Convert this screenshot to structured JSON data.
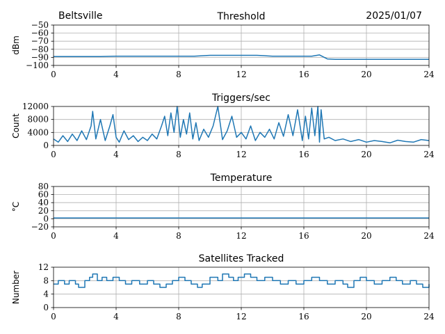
{
  "header": {
    "location": "Beltsville",
    "date": "2025/01/07"
  },
  "chart_data": [
    {
      "type": "line",
      "title": "Threshold",
      "ylabel": "dBm",
      "xlim": [
        0,
        24
      ],
      "xticks": [
        0,
        4,
        8,
        12,
        16,
        20,
        24
      ],
      "ylim": [
        -100,
        -50
      ],
      "yticks": [
        -100,
        -90,
        -80,
        -70,
        -60,
        -50
      ],
      "grid": true,
      "series": [
        {
          "color": "#1f77b4",
          "x": [
            0,
            1,
            2,
            3,
            4,
            5,
            6,
            7,
            8,
            9,
            10,
            11,
            12,
            13,
            14,
            15,
            16,
            16.5,
            17,
            17.5,
            18,
            19,
            20,
            20.5,
            21,
            22,
            23,
            24
          ],
          "y": [
            -89,
            -89,
            -89,
            -89,
            -88.5,
            -88.5,
            -88.5,
            -88.5,
            -88.5,
            -88.5,
            -87.5,
            -87.5,
            -87.5,
            -87.5,
            -88.5,
            -88.5,
            -88.5,
            -88.5,
            -87,
            -92,
            -92.5,
            -92.5,
            -92.5,
            -92.5,
            -92.5,
            -92.5,
            -92.5,
            -92.5
          ]
        }
      ]
    },
    {
      "type": "line",
      "title": "Triggers/sec",
      "ylabel": "Count",
      "xlim": [
        0,
        24
      ],
      "xticks": [
        0,
        4,
        8,
        12,
        16,
        20,
        24
      ],
      "ylim": [
        0,
        12000
      ],
      "yticks": [
        0,
        4000,
        8000,
        12000
      ],
      "grid": true,
      "series": [
        {
          "color": "#1f77b4",
          "x": [
            0,
            0.3,
            0.6,
            0.9,
            1.2,
            1.5,
            1.8,
            2.1,
            2.4,
            2.5,
            2.7,
            3.0,
            3.3,
            3.6,
            3.8,
            4.0,
            4.2,
            4.5,
            4.8,
            5.1,
            5.4,
            5.7,
            6.0,
            6.3,
            6.6,
            6.9,
            7.1,
            7.3,
            7.5,
            7.7,
            7.9,
            8.1,
            8.3,
            8.5,
            8.7,
            8.9,
            9.1,
            9.3,
            9.6,
            9.9,
            10.2,
            10.5,
            10.8,
            11.1,
            11.4,
            11.7,
            12.0,
            12.3,
            12.6,
            12.9,
            13.2,
            13.5,
            13.8,
            14.1,
            14.4,
            14.7,
            15.0,
            15.3,
            15.6,
            15.9,
            16.1,
            16.3,
            16.5,
            16.7,
            16.9,
            17.0,
            17.1,
            17.3,
            17.6,
            18.0,
            18.5,
            19.0,
            19.5,
            20.0,
            20.5,
            21.0,
            21.5,
            22.0,
            22.5,
            23.0,
            23.5,
            24.0
          ],
          "y": [
            2000,
            1000,
            3000,
            1200,
            3500,
            1500,
            4500,
            1800,
            6000,
            10500,
            2000,
            8000,
            1500,
            6000,
            9500,
            2500,
            1000,
            4500,
            1800,
            3000,
            1200,
            2500,
            1500,
            3500,
            2000,
            6000,
            9000,
            3000,
            10000,
            4000,
            12000,
            2500,
            8000,
            3500,
            10000,
            2000,
            7000,
            1500,
            5000,
            2500,
            6000,
            12000,
            1800,
            4500,
            9000,
            2500,
            4000,
            2000,
            6000,
            1500,
            4000,
            2500,
            5000,
            2000,
            7000,
            2800,
            9500,
            3000,
            11000,
            1500,
            9000,
            2000,
            11500,
            3000,
            12000,
            1000,
            11000,
            2000,
            2500,
            1500,
            2000,
            1200,
            1800,
            1000,
            1500,
            1200,
            800,
            1600,
            1200,
            1000,
            1800,
            1500
          ]
        }
      ]
    },
    {
      "type": "line",
      "title": "Temperature",
      "ylabel": "°C",
      "xlim": [
        0,
        24
      ],
      "xticks": [
        0,
        4,
        8,
        12,
        16,
        20,
        24
      ],
      "ylim": [
        -20,
        80
      ],
      "yticks": [
        -20,
        0,
        20,
        40,
        60,
        80
      ],
      "grid": true,
      "series": [
        {
          "color": "#1f77b4",
          "x": [
            0,
            24
          ],
          "y": [
            2,
            2
          ]
        }
      ]
    },
    {
      "type": "line",
      "title": "Satellites Tracked",
      "ylabel": "Number",
      "xlim": [
        0,
        24
      ],
      "xticks": [
        0,
        4,
        8,
        12,
        16,
        20,
        24
      ],
      "ylim": [
        0,
        12
      ],
      "yticks": [
        0,
        4,
        8,
        12
      ],
      "grid": true,
      "series": [
        {
          "color": "#1f77b4",
          "step": true,
          "x": [
            0,
            0.3,
            0.7,
            1.0,
            1.4,
            1.6,
            2.0,
            2.3,
            2.5,
            2.8,
            3.1,
            3.4,
            3.8,
            4.2,
            4.6,
            5.0,
            5.5,
            6.0,
            6.4,
            6.8,
            7.2,
            7.6,
            8.0,
            8.4,
            8.8,
            9.2,
            9.5,
            10.0,
            10.5,
            10.8,
            11.2,
            11.5,
            11.8,
            12.2,
            12.6,
            13.0,
            13.5,
            14.0,
            14.5,
            15.0,
            15.5,
            16.0,
            16.5,
            17.0,
            17.5,
            18.0,
            18.5,
            18.8,
            19.2,
            19.6,
            20.0,
            20.5,
            21.0,
            21.5,
            21.9,
            22.3,
            22.8,
            23.2,
            23.6,
            24.0
          ],
          "y": [
            7,
            8,
            7,
            8,
            7,
            6,
            8,
            9,
            10,
            8,
            9,
            8,
            9,
            8,
            7,
            8,
            7,
            8,
            7,
            6,
            7,
            8,
            9,
            8,
            7,
            6,
            7,
            9,
            8,
            10,
            9,
            8,
            9,
            10,
            9,
            8,
            9,
            8,
            7,
            8,
            7,
            8,
            9,
            8,
            7,
            8,
            7,
            6,
            8,
            9,
            8,
            7,
            8,
            9,
            8,
            7,
            8,
            7,
            6,
            7
          ]
        }
      ]
    }
  ]
}
